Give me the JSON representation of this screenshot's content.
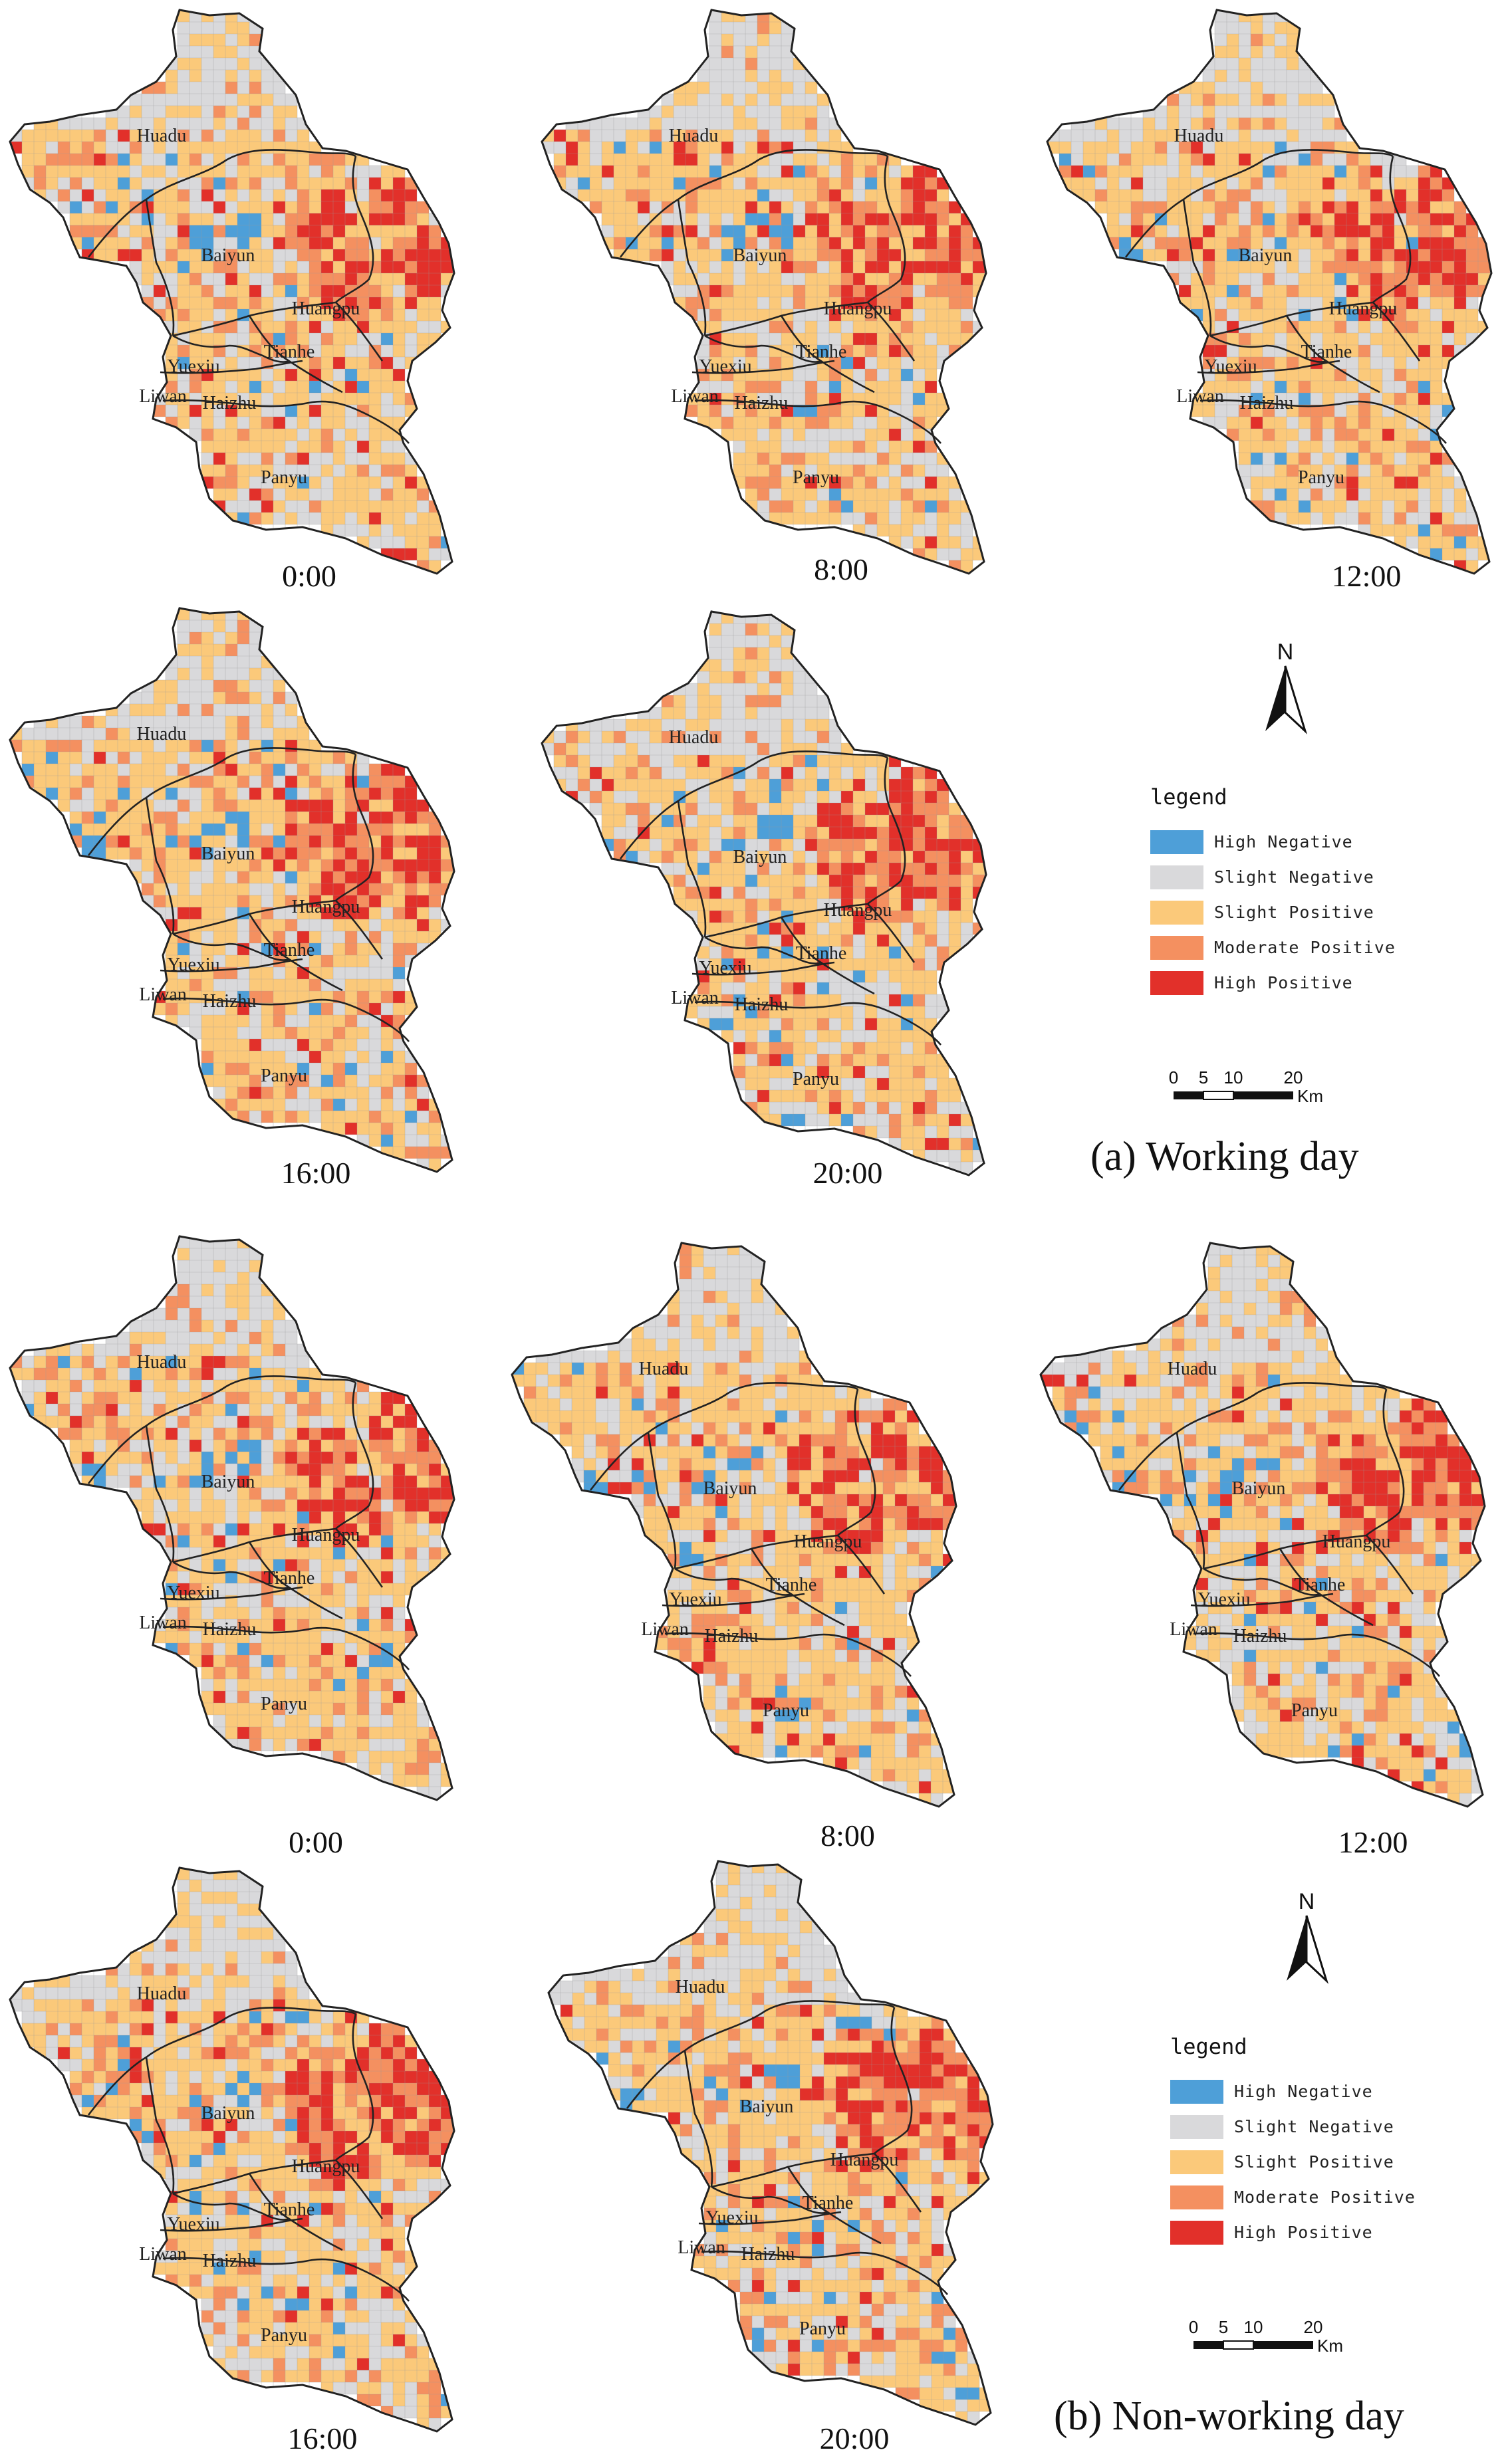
{
  "colors": {
    "high_negative": "#4e9fd8",
    "slight_negative": "#d9d9db",
    "slight_positive": "#fbc97a",
    "moderate_positive": "#f49060",
    "high_positive": "#e2302a",
    "boundary": "#222222"
  },
  "districts": {
    "huadu": "Huadu",
    "baiyun": "Baiyun",
    "huangpu": "Huangpu",
    "tianhe": "Tianhe",
    "yuexiu": "Yuexiu",
    "liwan": "Liwan",
    "haizhu": "Haizhu",
    "panyu": "Panyu"
  },
  "panel_a": {
    "caption": "(a) Working day",
    "maps": [
      {
        "time": "0:00"
      },
      {
        "time": "8:00"
      },
      {
        "time": "12:00"
      },
      {
        "time": "16:00"
      },
      {
        "time": "20:00"
      }
    ],
    "north_label": "N",
    "legend": {
      "title": "legend",
      "items": [
        {
          "label": "High Negative",
          "color": "#4e9fd8"
        },
        {
          "label": "Slight Negative",
          "color": "#d9d9db"
        },
        {
          "label": "Slight Positive",
          "color": "#fbc97a"
        },
        {
          "label": "Moderate Positive",
          "color": "#f49060"
        },
        {
          "label": "High Positive",
          "color": "#e2302a"
        }
      ]
    },
    "scale": {
      "ticks": [
        "0",
        "5",
        "10",
        "20"
      ],
      "unit": "Km"
    }
  },
  "panel_b": {
    "caption": "(b) Non-working day",
    "maps": [
      {
        "time": "0:00"
      },
      {
        "time": "8:00"
      },
      {
        "time": "12:00"
      },
      {
        "time": "16:00"
      },
      {
        "time": "20:00"
      }
    ],
    "north_label": "N",
    "legend": {
      "title": "legend",
      "items": [
        {
          "label": "High Negative",
          "color": "#4e9fd8"
        },
        {
          "label": "Slight Negative",
          "color": "#d9d9db"
        },
        {
          "label": "Slight Positive",
          "color": "#fbc97a"
        },
        {
          "label": "Moderate Positive",
          "color": "#f49060"
        },
        {
          "label": "High Positive",
          "color": "#e2302a"
        }
      ]
    },
    "scale": {
      "ticks": [
        "0",
        "5",
        "10",
        "20"
      ],
      "unit": "Km"
    }
  }
}
